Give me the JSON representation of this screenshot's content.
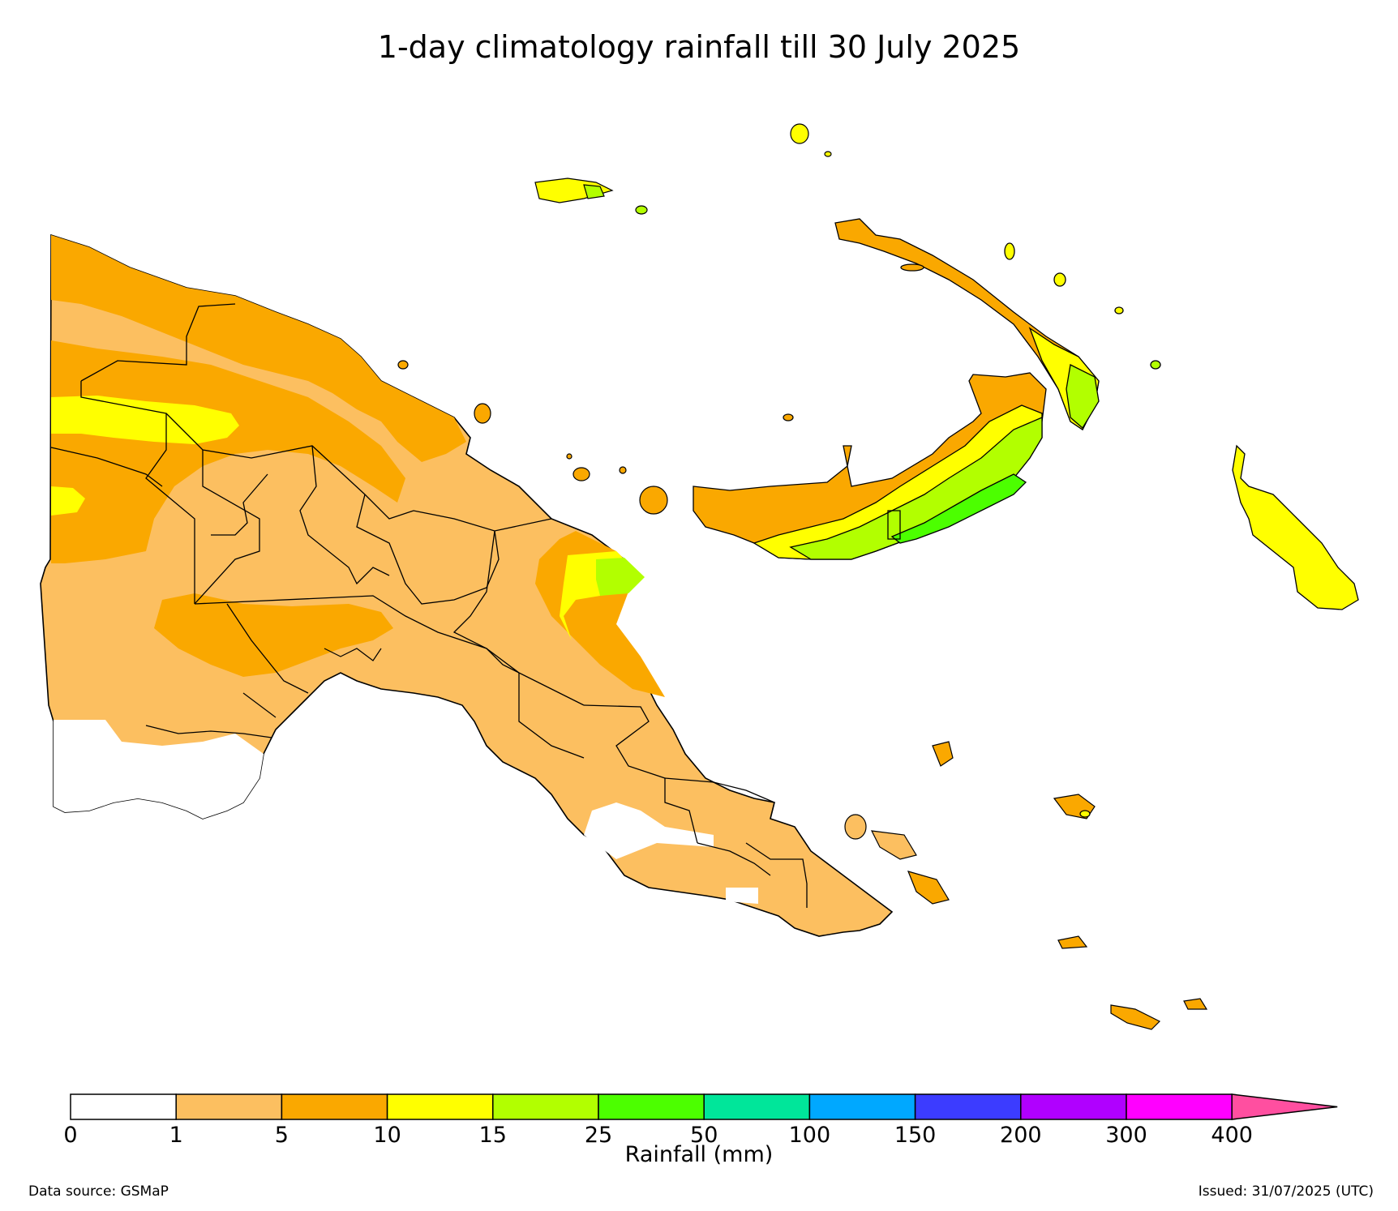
{
  "title": "1-day climatology rainfall till 30 July 2025",
  "colorbar": {
    "label": "Rainfall (mm)",
    "ticks": [
      "0",
      "1",
      "5",
      "10",
      "15",
      "25",
      "50",
      "100",
      "150",
      "200",
      "300",
      "400"
    ],
    "colors": [
      "#ffffff",
      "#fcbf60",
      "#faa800",
      "#ffff00",
      "#b2ff00",
      "#4cff00",
      "#00e69a",
      "#00a8ff",
      "#3c3cff",
      "#b000ff",
      "#ff00ff"
    ],
    "extend_color": "#ff4fa0"
  },
  "footer": {
    "source": "Data source: GSMaP",
    "issued": "Issued: 31/07/2025 (UTC)"
  }
}
